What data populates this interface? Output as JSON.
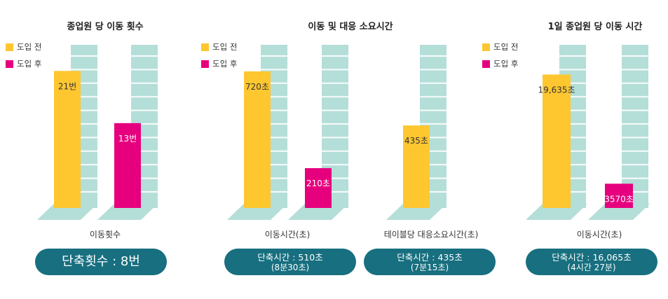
{
  "colors": {
    "before": "#fec730",
    "after": "#e6007e",
    "column": "#b4ded8",
    "floor": "#b4ded8",
    "badge": "#176f7f"
  },
  "legend": {
    "before": "도입 전",
    "after": "도입 후"
  },
  "chart_data": [
    {
      "type": "bar",
      "title": "종업원 당 이동 횟수",
      "xlabel": "이동횟수",
      "series": [
        {
          "name": "도입 전",
          "values": [
            21
          ],
          "labels": [
            "21번"
          ]
        },
        {
          "name": "도입 후",
          "values": [
            13
          ],
          "labels": [
            "13번"
          ]
        }
      ],
      "ylim": [
        0,
        25
      ],
      "legend": "top-left",
      "badge": [
        "단축횟수 : 8번"
      ]
    },
    {
      "type": "bar",
      "title": "이동 및 대응 소요시간",
      "categories": [
        "이동시간(초)",
        "테이블당 대응소요시간(초)"
      ],
      "series": [
        {
          "name": "도입 전",
          "values": [
            720,
            435
          ],
          "labels": [
            "720초",
            "435초"
          ]
        },
        {
          "name": "도입 후",
          "values": [
            210,
            null
          ],
          "labels": [
            "210초",
            ""
          ]
        }
      ],
      "ylim": [
        0,
        860
      ],
      "legend": "top-left",
      "badges": [
        [
          "단축시간 : 510초",
          "(8분30초)"
        ],
        [
          "단축시간 : 435초",
          "(7분15초)"
        ]
      ]
    },
    {
      "type": "bar",
      "title": "1일 종업원 당 이동 시간",
      "xlabel": "이동시간(초)",
      "series": [
        {
          "name": "도입 전",
          "values": [
            19635
          ],
          "labels": [
            "19,635초"
          ]
        },
        {
          "name": "도입 후",
          "values": [
            3570
          ],
          "labels": [
            "3570초"
          ]
        }
      ],
      "ylim": [
        0,
        24000
      ],
      "legend": "top-left",
      "badge": [
        "단축시간 : 16,065초",
        "(4시간 27분)"
      ]
    }
  ]
}
